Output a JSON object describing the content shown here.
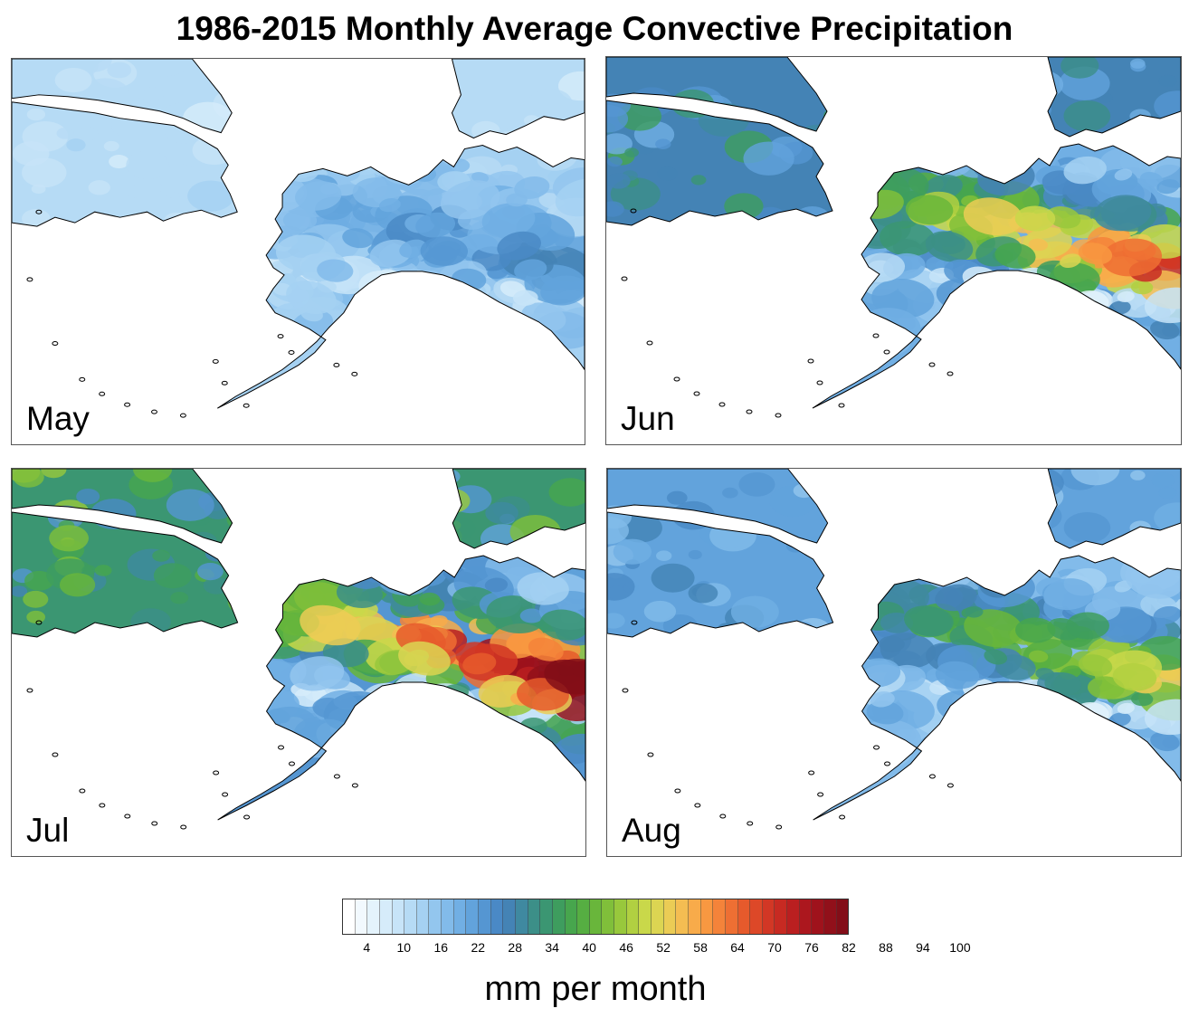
{
  "title": "1986-2015 Monthly Average Convective Precipitation",
  "legend": {
    "unit_label": "mm per month",
    "ticks": [
      "4",
      "10",
      "16",
      "22",
      "28",
      "34",
      "40",
      "46",
      "52",
      "58",
      "64",
      "70",
      "76",
      "82",
      "88",
      "94",
      "100"
    ],
    "colors": [
      "#ffffff",
      "#f2f9fe",
      "#e4f3fc",
      "#d6ecfa",
      "#c7e4f8",
      "#b6dbf5",
      "#a5d1f2",
      "#93c6ee",
      "#82bbea",
      "#71afe4",
      "#62a3dc",
      "#5596d2",
      "#4a89c6",
      "#4483b5",
      "#3f89a0",
      "#3c8f88",
      "#3b9672",
      "#3e9d5e",
      "#47a64d",
      "#56ae42",
      "#69b63b",
      "#80bf3a",
      "#98c83c",
      "#b1d041",
      "#c9d84a",
      "#dcd552",
      "#ebcc55",
      "#f4bd52",
      "#f8ab4a",
      "#f89841",
      "#f4833a",
      "#ee6f33",
      "#e65a2c",
      "#dd4828",
      "#d23725",
      "#c72a22",
      "#ba1f20",
      "#ac171e",
      "#9f121c",
      "#91101a",
      "#830e18"
    ]
  },
  "panels": [
    {
      "month": "May",
      "intensity": 0.18
    },
    {
      "month": "Jun",
      "intensity": 0.78
    },
    {
      "month": "Jul",
      "intensity": 1.0
    },
    {
      "month": "Aug",
      "intensity": 0.55
    }
  ]
}
